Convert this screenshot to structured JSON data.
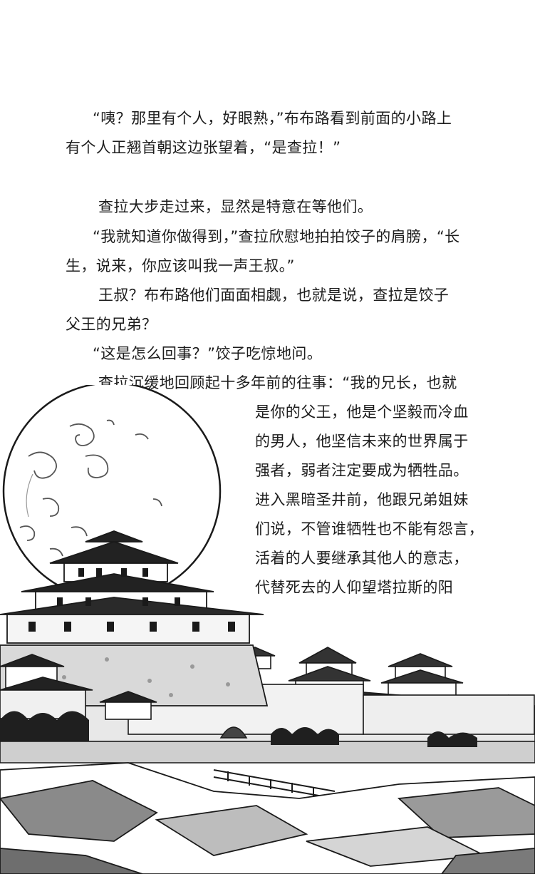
{
  "text_lines": [
    "“咦？那里有个人，好眼熟，”布布路看到前面的小路上",
    "有个人正翘首朝这边张望着，“是查拉！”",
    "查拉大步走过来，显然是特意在等他们。",
    "“我就知道你做得到，”查拉欣慰地拍拍饺子的肩膀，“长",
    "生，说来，你应该叫我一声王叔。”",
    "王叔？布布路他们面面相觑，也就是说，查拉是饺子",
    "父王的兄弟？",
    "“这是怎么回事？”饺子吃惊地问。",
    "查拉沉缓地回顾起十多年前的往事：“我的兄长，也就",
    "是你的父王，他是个坚毅而冷血",
    "的男人，他坚信未来的世界属于",
    "强者，弱者注定要成为牺牲品。",
    "进入黑暗圣井前，他跟兄弟姐妹",
    "们说，不管谁牺牲也不能有怨言，",
    "活着的人要继承其他人的意志，",
    "代替死去的人仰望塔拉斯的阳"
  ],
  "illustration": {
    "subject": "moon-over-castle",
    "colors": {
      "ink": "#1a1a1a",
      "grey": "#8a8a8a",
      "light": "#d9d9d9",
      "paper": "#ffffff"
    }
  }
}
